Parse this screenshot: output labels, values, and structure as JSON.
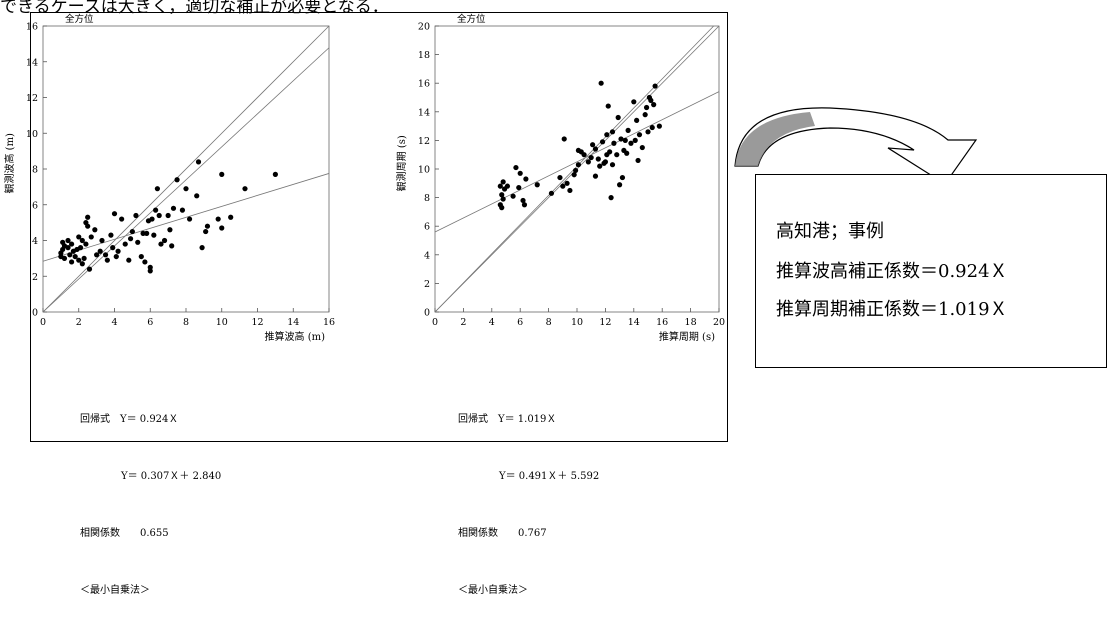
{
  "header_text": "できるケースは大きく，適切な補正が必要となる．",
  "chart_data": [
    {
      "type": "scatter",
      "title": "全方位",
      "xlabel": "推算波高 (m)",
      "ylabel": "観測波高 (m)",
      "xlim": [
        0,
        16
      ],
      "ylim": [
        0,
        16
      ],
      "xticks": [
        0,
        2,
        4,
        6,
        8,
        10,
        12,
        14,
        16
      ],
      "yticks": [
        0,
        2,
        4,
        6,
        8,
        10,
        12,
        14,
        16
      ],
      "grid": false,
      "lines": [
        {
          "slope": 1.0,
          "intercept": 0
        },
        {
          "slope": 0.924,
          "intercept": 0
        },
        {
          "slope": 0.307,
          "intercept": 2.84
        }
      ],
      "points": [
        [
          1.0,
          3.1
        ],
        [
          1.0,
          3.3
        ],
        [
          1.1,
          3.5
        ],
        [
          1.1,
          3.9
        ],
        [
          1.2,
          3.7
        ],
        [
          1.2,
          3.0
        ],
        [
          1.4,
          3.6
        ],
        [
          1.4,
          4.0
        ],
        [
          1.5,
          3.2
        ],
        [
          1.6,
          3.8
        ],
        [
          1.6,
          2.8
        ],
        [
          1.7,
          3.4
        ],
        [
          1.8,
          3.1
        ],
        [
          1.9,
          3.5
        ],
        [
          2.0,
          2.9
        ],
        [
          2.0,
          4.2
        ],
        [
          2.1,
          3.6
        ],
        [
          2.2,
          4.0
        ],
        [
          2.2,
          2.7
        ],
        [
          2.3,
          3.0
        ],
        [
          2.4,
          3.8
        ],
        [
          2.4,
          5.0
        ],
        [
          2.5,
          5.3
        ],
        [
          2.5,
          4.8
        ],
        [
          2.6,
          2.4
        ],
        [
          2.7,
          4.2
        ],
        [
          2.9,
          4.6
        ],
        [
          3.0,
          3.2
        ],
        [
          3.2,
          3.4
        ],
        [
          3.3,
          4.0
        ],
        [
          3.5,
          3.2
        ],
        [
          3.6,
          2.9
        ],
        [
          3.8,
          4.3
        ],
        [
          3.9,
          3.6
        ],
        [
          4.0,
          5.5
        ],
        [
          4.1,
          3.1
        ],
        [
          4.2,
          3.4
        ],
        [
          4.4,
          5.2
        ],
        [
          4.6,
          3.8
        ],
        [
          4.8,
          2.9
        ],
        [
          4.9,
          4.1
        ],
        [
          5.0,
          4.5
        ],
        [
          5.2,
          5.4
        ],
        [
          5.3,
          3.9
        ],
        [
          5.5,
          3.1
        ],
        [
          5.6,
          4.4
        ],
        [
          5.7,
          2.8
        ],
        [
          5.8,
          4.4
        ],
        [
          5.9,
          5.1
        ],
        [
          6.0,
          2.5
        ],
        [
          6.0,
          2.3
        ],
        [
          6.1,
          5.2
        ],
        [
          6.2,
          4.3
        ],
        [
          6.3,
          5.7
        ],
        [
          6.4,
          6.9
        ],
        [
          6.5,
          5.4
        ],
        [
          6.6,
          3.8
        ],
        [
          6.8,
          4.0
        ],
        [
          7.0,
          5.4
        ],
        [
          7.1,
          4.6
        ],
        [
          7.2,
          3.7
        ],
        [
          7.3,
          5.8
        ],
        [
          7.5,
          7.4
        ],
        [
          7.8,
          5.7
        ],
        [
          8.0,
          6.9
        ],
        [
          8.2,
          5.2
        ],
        [
          8.6,
          6.5
        ],
        [
          8.7,
          8.4
        ],
        [
          8.9,
          3.6
        ],
        [
          9.1,
          4.5
        ],
        [
          9.2,
          4.8
        ],
        [
          9.8,
          5.2
        ],
        [
          10.0,
          7.7
        ],
        [
          10.0,
          4.7
        ],
        [
          10.5,
          5.3
        ],
        [
          11.3,
          6.9
        ],
        [
          13.0,
          7.7
        ]
      ]
    },
    {
      "type": "scatter",
      "title": "全方位",
      "xlabel": "推算周期 (s)",
      "ylabel": "観測周期 (s)",
      "xlim": [
        0,
        20
      ],
      "ylim": [
        0,
        20
      ],
      "xticks": [
        0,
        2,
        4,
        6,
        8,
        10,
        12,
        14,
        16,
        18,
        20
      ],
      "yticks": [
        0,
        2,
        4,
        6,
        8,
        10,
        12,
        14,
        16,
        18,
        20
      ],
      "grid": false,
      "lines": [
        {
          "slope": 1.0,
          "intercept": 0
        },
        {
          "slope": 1.019,
          "intercept": 0
        },
        {
          "slope": 0.491,
          "intercept": 5.592
        }
      ],
      "points": [
        [
          4.6,
          8.8
        ],
        [
          4.6,
          7.5
        ],
        [
          4.7,
          8.2
        ],
        [
          4.7,
          7.3
        ],
        [
          4.8,
          9.1
        ],
        [
          4.8,
          7.9
        ],
        [
          4.9,
          8.6
        ],
        [
          5.1,
          8.8
        ],
        [
          5.5,
          8.1
        ],
        [
          5.7,
          10.1
        ],
        [
          5.9,
          8.7
        ],
        [
          6.0,
          9.7
        ],
        [
          6.2,
          7.8
        ],
        [
          6.3,
          7.5
        ],
        [
          6.4,
          9.3
        ],
        [
          7.2,
          8.9
        ],
        [
          8.2,
          8.3
        ],
        [
          8.8,
          9.4
        ],
        [
          9.0,
          8.8
        ],
        [
          9.1,
          12.1
        ],
        [
          9.3,
          9.0
        ],
        [
          9.5,
          8.5
        ],
        [
          9.8,
          9.6
        ],
        [
          9.9,
          9.9
        ],
        [
          10.1,
          10.3
        ],
        [
          10.1,
          11.3
        ],
        [
          10.3,
          11.2
        ],
        [
          10.5,
          11.0
        ],
        [
          10.8,
          10.5
        ],
        [
          11.0,
          10.8
        ],
        [
          11.1,
          11.7
        ],
        [
          11.3,
          11.4
        ],
        [
          11.3,
          9.5
        ],
        [
          11.5,
          10.7
        ],
        [
          11.6,
          10.2
        ],
        [
          11.7,
          16.0
        ],
        [
          11.8,
          11.9
        ],
        [
          11.9,
          10.4
        ],
        [
          12.0,
          10.5
        ],
        [
          12.1,
          11.0
        ],
        [
          12.1,
          12.4
        ],
        [
          12.2,
          14.4
        ],
        [
          12.3,
          11.2
        ],
        [
          12.4,
          8.0
        ],
        [
          12.5,
          12.6
        ],
        [
          12.5,
          10.3
        ],
        [
          12.6,
          11.8
        ],
        [
          12.8,
          11.0
        ],
        [
          12.9,
          13.6
        ],
        [
          13.0,
          8.9
        ],
        [
          13.1,
          12.1
        ],
        [
          13.2,
          9.4
        ],
        [
          13.3,
          11.3
        ],
        [
          13.4,
          12.0
        ],
        [
          13.5,
          11.1
        ],
        [
          13.6,
          12.7
        ],
        [
          13.8,
          11.8
        ],
        [
          14.0,
          14.7
        ],
        [
          14.1,
          12.0
        ],
        [
          14.2,
          13.4
        ],
        [
          14.4,
          12.4
        ],
        [
          14.6,
          11.5
        ],
        [
          14.8,
          13.8
        ],
        [
          14.9,
          14.3
        ],
        [
          15.0,
          12.6
        ],
        [
          15.1,
          15.0
        ],
        [
          15.2,
          14.8
        ],
        [
          15.3,
          12.9
        ],
        [
          15.4,
          14.5
        ],
        [
          15.5,
          15.8
        ],
        [
          15.8,
          13.0
        ],
        [
          14.3,
          10.6
        ]
      ]
    }
  ],
  "stats": [
    {
      "line1": "回帰式　Y＝ 0.924Ｘ",
      "line2": "Y＝ 0.307Ｘ＋ 2.840",
      "line3": "相関係数　　0.655",
      "line4": "＜最小自乗法＞"
    },
    {
      "line1": "回帰式　Y＝ 1.019Ｘ",
      "line2": "Y＝ 0.491Ｘ＋ 5.592",
      "line3": "相関係数　　0.767",
      "line4": "＜最小自乗法＞"
    }
  ],
  "note": {
    "line1": "高知港；事例",
    "line2": "推算波高補正係数＝0.924Ｘ",
    "line3": "推算周期補正係数＝1.019Ｘ"
  }
}
